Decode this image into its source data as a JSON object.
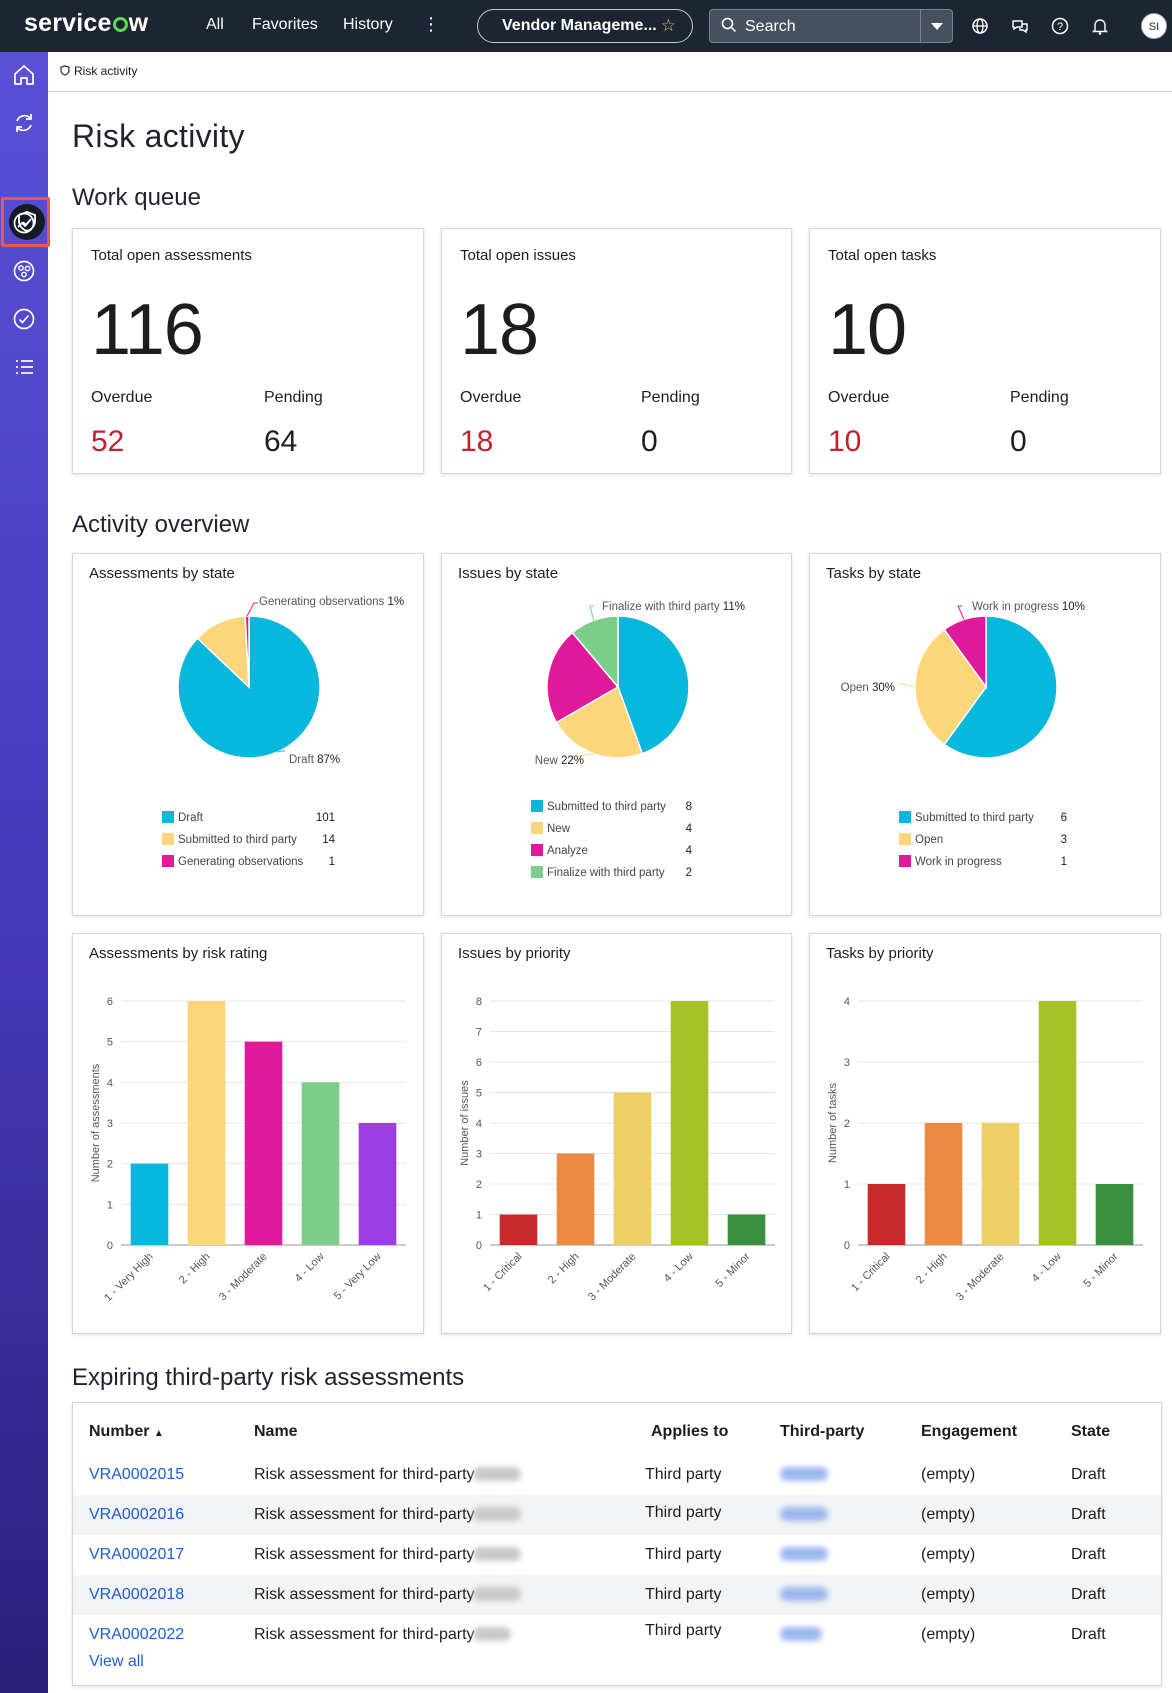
{
  "topbar": {
    "logo_text": "servicenow",
    "nav": [
      "All",
      "Favorites",
      "History"
    ],
    "app_scope": "Vendor Manageme...",
    "search_placeholder": "Search",
    "avatar_initials": "SI"
  },
  "breadcrumb": "Risk activity",
  "page_title": "Risk activity",
  "sections": {
    "work_queue": "Work queue",
    "activity_overview": "Activity overview",
    "expiring": "Expiring third-party risk assessments"
  },
  "kpi_cards": [
    {
      "title": "Total open assessments",
      "total": "116",
      "overdue_label": "Overdue",
      "overdue": "52",
      "pending_label": "Pending",
      "pending": "64"
    },
    {
      "title": "Total open issues",
      "total": "18",
      "overdue_label": "Overdue",
      "overdue": "18",
      "pending_label": "Pending",
      "pending": "0"
    },
    {
      "title": "Total open tasks",
      "total": "10",
      "overdue_label": "Overdue",
      "overdue": "10",
      "pending_label": "Pending",
      "pending": "0"
    }
  ],
  "chart_data": [
    {
      "type": "pie",
      "title": "Assessments by state",
      "slices": [
        {
          "label": "Draft",
          "value": 101,
          "color": "#08b8dc"
        },
        {
          "label": "Submitted to third party",
          "value": 14,
          "color": "#fdd57b"
        },
        {
          "label": "Generating observations",
          "value": 1,
          "color": "#e0199a"
        }
      ],
      "callouts": [
        {
          "label": "Generating observations",
          "pct": "1%"
        },
        {
          "label": "Draft",
          "pct": "87%"
        }
      ]
    },
    {
      "type": "pie",
      "title": "Issues by state",
      "slices": [
        {
          "label": "Submitted to third party",
          "value": 8,
          "color": "#08b8dc"
        },
        {
          "label": "New",
          "value": 4,
          "color": "#fdd57b"
        },
        {
          "label": "Analyze",
          "value": 4,
          "color": "#e0199a"
        },
        {
          "label": "Finalize with third party",
          "value": 2,
          "color": "#7ccd8a"
        }
      ],
      "callouts": [
        {
          "label": "Finalize with third party",
          "pct": "11%"
        },
        {
          "label": "New",
          "pct": "22%"
        }
      ]
    },
    {
      "type": "pie",
      "title": "Tasks by state",
      "slices": [
        {
          "label": "Submitted to third party",
          "value": 6,
          "color": "#08b8dc"
        },
        {
          "label": "Open",
          "value": 3,
          "color": "#fdd57b"
        },
        {
          "label": "Work in progress",
          "value": 1,
          "color": "#e0199a"
        }
      ],
      "callouts": [
        {
          "label": "Work in progress",
          "pct": "10%"
        },
        {
          "label": "Open",
          "pct": "30%"
        }
      ]
    },
    {
      "type": "bar",
      "title": "Assessments by risk rating",
      "ylabel": "Number of assessments",
      "ylim": [
        0,
        6
      ],
      "yticks": [
        0,
        1,
        2,
        3,
        4,
        5,
        6
      ],
      "categories": [
        "1 - Very High",
        "2 - High",
        "3 - Moderate",
        "4 - Low",
        "5 - Very Low"
      ],
      "values": [
        2,
        6,
        5,
        4,
        3
      ],
      "colors": [
        "#08b8dc",
        "#fdd57b",
        "#e0199a",
        "#7ccd8a",
        "#9b3de0"
      ]
    },
    {
      "type": "bar",
      "title": "Issues by priority",
      "ylabel": "Number of issues",
      "ylim": [
        0,
        8
      ],
      "yticks": [
        0,
        1,
        2,
        3,
        4,
        5,
        6,
        7,
        8
      ],
      "categories": [
        "1 - Critical",
        "2 - High",
        "3 - Moderate",
        "4 - Low",
        "5 - Minor"
      ],
      "values": [
        1,
        3,
        5,
        8,
        1
      ],
      "colors": [
        "#c62a2a",
        "#ec8a45",
        "#efd066",
        "#a6c326",
        "#3a8f3f"
      ]
    },
    {
      "type": "bar",
      "title": "Tasks by priority",
      "ylabel": "Number of tasks",
      "ylim": [
        0,
        4
      ],
      "yticks": [
        0,
        1,
        2,
        3,
        4
      ],
      "categories": [
        "1 - Critical",
        "2 - High",
        "3 - Moderate",
        "4 - Low",
        "5 - Minor"
      ],
      "values": [
        1,
        2,
        2,
        4,
        1
      ],
      "colors": [
        "#c62a2a",
        "#ec8a45",
        "#efd066",
        "#a6c326",
        "#3a8f3f"
      ]
    }
  ],
  "table": {
    "columns": [
      "Number",
      "Name",
      "Applies to",
      "Third-party",
      "Engagement",
      "State"
    ],
    "rows": [
      {
        "number": "VRA0002015",
        "name": "Risk assessment for third-party",
        "applies_to": "Third party",
        "third_party": "Oracle",
        "engagement": "(empty)",
        "state": "Draft"
      },
      {
        "number": "VRA0002016",
        "name": "Risk assessment for third-party",
        "applies_to": "Third party",
        "third_party": "Oracle",
        "engagement": "(empty)",
        "state": "Draft"
      },
      {
        "number": "VRA0002017",
        "name": "Risk assessment for third-party",
        "applies_to": "Third party",
        "third_party": "Oracle",
        "engagement": "(empty)",
        "state": "Draft"
      },
      {
        "number": "VRA0002018",
        "name": "Risk assessment for third-party",
        "applies_to": "Third party",
        "third_party": "Oracle",
        "engagement": "(empty)",
        "state": "Draft"
      },
      {
        "number": "VRA0002022",
        "name": "Risk assessment for third-party",
        "applies_to": "Third party",
        "third_party": "Apple",
        "engagement": "(empty)",
        "state": "Draft"
      }
    ],
    "view_all": "View all"
  }
}
